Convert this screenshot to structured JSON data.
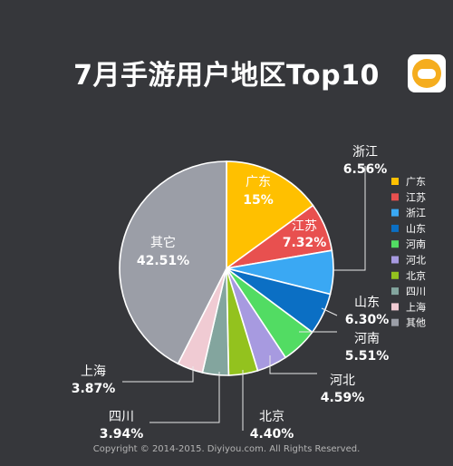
{
  "title": "7月手游用户地区Top10",
  "copyright": "Copyright © 2014-2015. Diyiyou.com. All Rights Reserved.",
  "chart_data": {
    "type": "pie",
    "title": "7月手游用户地区Top10",
    "slices": [
      {
        "name": "广东",
        "value": 15,
        "label": "15%",
        "color": "#ffc000"
      },
      {
        "name": "江苏",
        "value": 7.32,
        "label": "7.32%",
        "color": "#e8504f"
      },
      {
        "name": "浙江",
        "value": 6.56,
        "label": "6.56%",
        "color": "#3aa8f3"
      },
      {
        "name": "山东",
        "value": 6.3,
        "label": "6.30%",
        "color": "#0b6fc4"
      },
      {
        "name": "河南",
        "value": 5.51,
        "label": "5.51%",
        "color": "#52dc63"
      },
      {
        "name": "河北",
        "value": 4.59,
        "label": "4.59%",
        "color": "#a79ae0"
      },
      {
        "name": "北京",
        "value": 4.4,
        "label": "4.40%",
        "color": "#93c21e"
      },
      {
        "name": "四川",
        "value": 3.94,
        "label": "3.94%",
        "color": "#83a59e"
      },
      {
        "name": "上海",
        "value": 3.87,
        "label": "3.87%",
        "color": "#f0cbd3"
      },
      {
        "name": "其它",
        "value": 42.51,
        "label": "42.51%",
        "color": "#9b9ea7"
      }
    ],
    "legend": {
      "placement": "right",
      "items": [
        {
          "name": "广东",
          "color": "#ffc000"
        },
        {
          "name": "江苏",
          "color": "#e8504f"
        },
        {
          "name": "浙江",
          "color": "#3aa8f3"
        },
        {
          "name": "山东",
          "color": "#0b6fc4"
        },
        {
          "name": "河南",
          "color": "#52dc63"
        },
        {
          "name": "河北",
          "color": "#a79ae0"
        },
        {
          "name": "北京",
          "color": "#93c21e"
        },
        {
          "name": "四川",
          "color": "#83a59e"
        },
        {
          "name": "上海",
          "color": "#f0cbd3"
        },
        {
          "name": "其他",
          "color": "#9b9ea7"
        }
      ]
    }
  }
}
